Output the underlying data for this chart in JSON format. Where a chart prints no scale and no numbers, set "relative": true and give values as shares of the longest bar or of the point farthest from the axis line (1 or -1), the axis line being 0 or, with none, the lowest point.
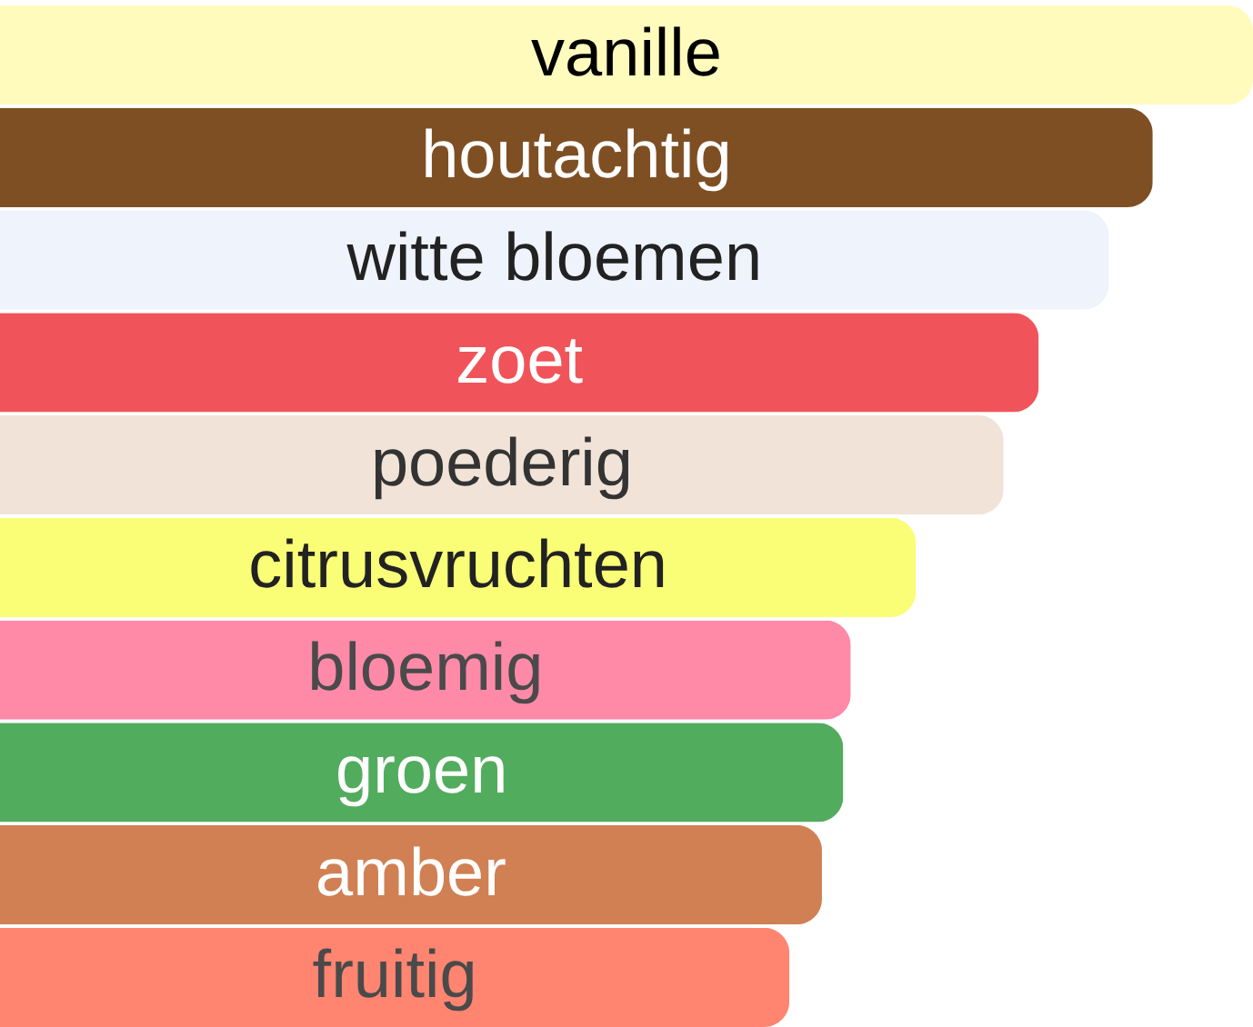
{
  "chart_data": {
    "type": "bar",
    "orientation": "horizontal",
    "relative": true,
    "categories": [
      "vanille",
      "houtachtig",
      "witte bloemen",
      "zoet",
      "poederig",
      "citrusvruchten",
      "bloemig",
      "groen",
      "amber",
      "fruitig"
    ],
    "values": [
      1,
      0.92,
      0.885,
      0.829,
      0.801,
      0.731,
      0.679,
      0.673,
      0.656,
      0.63
    ],
    "colors": [
      "#fffbbd",
      "#7f4f24",
      "#eef3fc",
      "#f0545a",
      "#f1e3d7",
      "#f9fe76",
      "#ff8aa8",
      "#52ac5e",
      "#d08053",
      "#ff8570"
    ]
  }
}
